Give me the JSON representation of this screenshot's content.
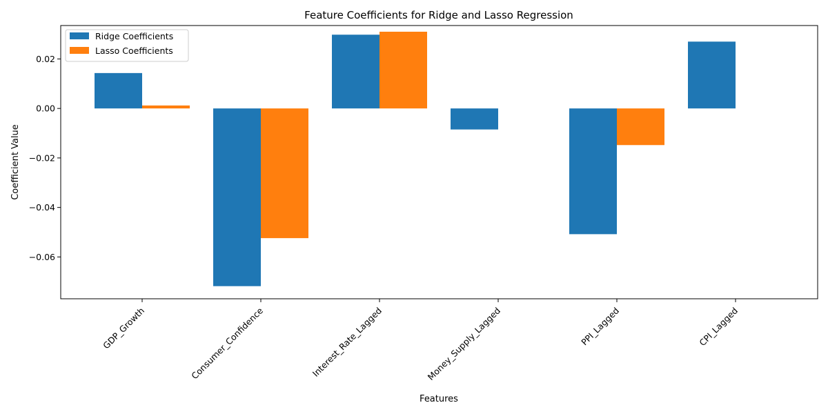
{
  "chart_data": {
    "type": "bar",
    "title": "Feature Coefficients for Ridge and Lasso Regression",
    "xlabel": "Features",
    "ylabel": "Coefficient Value",
    "categories": [
      "GDP_Growth",
      "Consumer_Confidence",
      "Interest_Rate_Lagged",
      "Money_Supply_Lagged",
      "PPI_Lagged",
      "CPI_Lagged"
    ],
    "series": [
      {
        "name": "Ridge Coefficients",
        "color": "#1f77b4",
        "values": [
          0.0143,
          -0.0718,
          0.0298,
          -0.0085,
          -0.0508,
          0.027
        ]
      },
      {
        "name": "Lasso Coefficients",
        "color": "#ff7f0e",
        "values": [
          0.0012,
          -0.0524,
          0.031,
          0.0,
          -0.0148,
          0.0
        ]
      }
    ],
    "ylim": [
      -0.0769,
      0.0335
    ],
    "yticks": [
      -0.06,
      -0.04,
      -0.02,
      0.0,
      0.02
    ],
    "ytick_labels": [
      "−0.06",
      "−0.04",
      "−0.02",
      "0.00",
      "0.02"
    ],
    "legend_position": "top-left",
    "grid": false
  }
}
